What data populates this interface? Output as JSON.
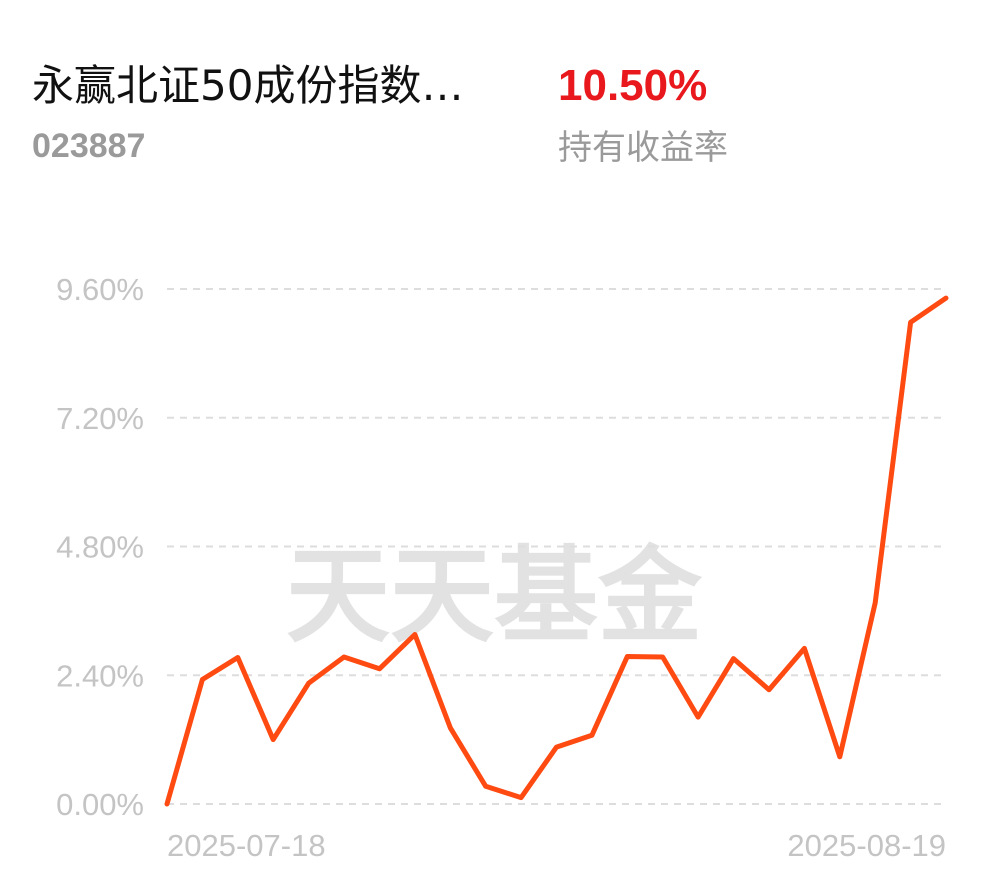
{
  "header": {
    "fund_name": "永赢北证50成份指数…",
    "fund_code": "023887",
    "return_value": "10.50%",
    "return_label": "持有收益率"
  },
  "watermark": "天天基金",
  "colors": {
    "line": "#ff4a12",
    "return_value": "#e8181d",
    "grid": "#dddddd",
    "tick_text": "#c4c4c4"
  },
  "chart_data": {
    "type": "line",
    "title": "",
    "xlabel": "",
    "ylabel": "",
    "x_tick_labels": [
      "2025-07-18",
      "2025-08-19"
    ],
    "y_ticks": [
      "0.00%",
      "2.40%",
      "4.80%",
      "7.20%",
      "9.60%"
    ],
    "y_tick_values": [
      0,
      2.4,
      4.8,
      7.2,
      9.6
    ],
    "ylim": [
      0,
      9.6
    ],
    "grid": true,
    "series": [
      {
        "values": [
          0.0,
          2.32,
          2.73,
          1.2,
          2.25,
          2.74,
          2.52,
          3.16,
          1.42,
          0.33,
          0.12,
          1.06,
          1.28,
          2.75,
          2.74,
          1.62,
          2.71,
          2.13,
          2.9,
          0.88,
          3.75,
          8.98,
          9.43
        ]
      }
    ]
  }
}
